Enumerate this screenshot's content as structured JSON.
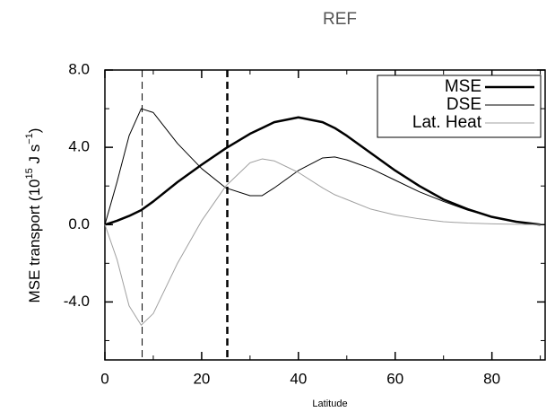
{
  "chart_data": {
    "type": "line",
    "title": "REF",
    "xlabel": "Latitude",
    "ylabel": [
      "MSE transport (10",
      "15",
      " J s",
      "−1",
      ")"
    ],
    "x": [
      0,
      2.5,
      5,
      7.5,
      10,
      15,
      20,
      25,
      30,
      32.5,
      35,
      40,
      45,
      47.5,
      50,
      55,
      60,
      65,
      70,
      75,
      80,
      85,
      90
    ],
    "series": [
      {
        "name": "MSE",
        "color": "#000000",
        "width": 2.5,
        "values": [
          0,
          0.2,
          0.45,
          0.75,
          1.2,
          2.2,
          3.1,
          3.95,
          4.7,
          5.0,
          5.3,
          5.55,
          5.3,
          5.0,
          4.6,
          3.7,
          2.8,
          2.0,
          1.3,
          0.8,
          0.4,
          0.15,
          0
        ]
      },
      {
        "name": "DSE",
        "color": "#000000",
        "width": 1,
        "values": [
          0,
          2.2,
          4.6,
          6.0,
          5.8,
          4.2,
          2.9,
          1.9,
          1.5,
          1.5,
          1.9,
          2.8,
          3.45,
          3.5,
          3.35,
          2.9,
          2.3,
          1.7,
          1.2,
          0.75,
          0.4,
          0.15,
          0
        ]
      },
      {
        "name": "Lat. Heat",
        "color": "#a0a0a0",
        "width": 1,
        "values": [
          0,
          -1.8,
          -4.2,
          -5.2,
          -4.6,
          -2.0,
          0.2,
          2.0,
          3.2,
          3.4,
          3.3,
          2.7,
          1.9,
          1.55,
          1.3,
          0.8,
          0.5,
          0.3,
          0.15,
          0.08,
          0.04,
          0.02,
          0
        ]
      }
    ],
    "vlines": [
      {
        "x": 7.7,
        "width": 1
      },
      {
        "x": 25.3,
        "width": 2.5
      }
    ],
    "xlim": [
      0,
      91
    ],
    "ylim": [
      -7,
      8
    ],
    "xticks": [
      0,
      20,
      40,
      60,
      80
    ],
    "xminor": [
      10,
      30,
      50,
      70,
      90
    ],
    "yticks": [
      {
        "value": 8,
        "label": "8.0"
      },
      {
        "value": 4,
        "label": "4.0"
      },
      {
        "value": 0,
        "label": "0.0"
      },
      {
        "value": -4,
        "label": "-4.0"
      }
    ],
    "yminor": [
      6,
      2,
      -2,
      -6
    ],
    "legend": "upper right"
  }
}
